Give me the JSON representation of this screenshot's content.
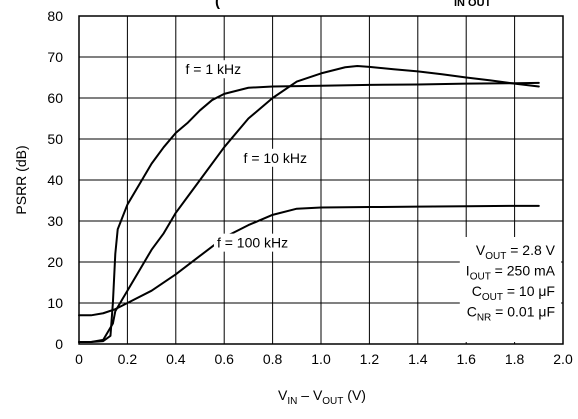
{
  "chart_data": {
    "type": "line",
    "title": "(",
    "title_right": "IN OUT",
    "ylabel": "PSRR (dB)",
    "xlabel": {
      "main1": "V",
      "sub1": "IN",
      "mid": " – V",
      "sub2": "OUT",
      "tail": " (V)"
    },
    "xlim": [
      0,
      2.0
    ],
    "ylim": [
      0,
      80
    ],
    "xticks": [
      "0",
      "0.2",
      "0.4",
      "0.6",
      "0.8",
      "1.0",
      "1.2",
      "1.4",
      "1.6",
      "1.8",
      "2.0"
    ],
    "yticks": [
      "0",
      "10",
      "20",
      "30",
      "40",
      "50",
      "60",
      "70",
      "80"
    ],
    "grid": true,
    "series": [
      {
        "name": "f = 1 kHz",
        "x": [
          0.0,
          0.05,
          0.1,
          0.13,
          0.14,
          0.15,
          0.16,
          0.2,
          0.25,
          0.3,
          0.35,
          0.4,
          0.45,
          0.5,
          0.55,
          0.6,
          0.7,
          0.8,
          1.0,
          1.2,
          1.4,
          1.6,
          1.8,
          1.9
        ],
        "y": [
          0.5,
          0.5,
          0.7,
          2,
          10,
          22,
          28,
          34,
          39,
          44,
          48,
          51.5,
          54,
          57,
          59.5,
          61,
          62.5,
          62.8,
          63,
          63.2,
          63.3,
          63.5,
          63.6,
          63.7
        ]
      },
      {
        "name": "f = 10 kHz",
        "x": [
          0.0,
          0.05,
          0.1,
          0.14,
          0.15,
          0.18,
          0.2,
          0.25,
          0.3,
          0.35,
          0.4,
          0.45,
          0.5,
          0.6,
          0.7,
          0.8,
          0.9,
          1.0,
          1.1,
          1.15,
          1.2,
          1.3,
          1.4,
          1.5,
          1.6,
          1.7,
          1.8,
          1.9
        ],
        "y": [
          0.5,
          0.5,
          1,
          5,
          8,
          11,
          13,
          18,
          23,
          27,
          32,
          36,
          40,
          48,
          55,
          60,
          64,
          66,
          67.5,
          67.8,
          67.6,
          67,
          66.5,
          65.8,
          65,
          64.3,
          63.5,
          62.8
        ]
      },
      {
        "name": "f = 100 kHz",
        "x": [
          0.0,
          0.05,
          0.1,
          0.15,
          0.2,
          0.3,
          0.4,
          0.5,
          0.6,
          0.7,
          0.8,
          0.9,
          1.0,
          1.2,
          1.4,
          1.6,
          1.8,
          1.9
        ],
        "y": [
          7,
          7,
          7.5,
          8.5,
          10,
          13,
          17,
          21.5,
          26,
          29,
          31.5,
          33,
          33.3,
          33.4,
          33.5,
          33.6,
          33.7,
          33.7
        ]
      }
    ],
    "annotations": [
      {
        "main": "V",
        "sub": "OUT",
        "tail": " = 2.8 V"
      },
      {
        "main": "I",
        "sub": "OUT",
        "tail": " = 250 mA"
      },
      {
        "main": "C",
        "sub": "OUT",
        "tail": " = 10 μF"
      },
      {
        "main": "C",
        "sub": "NR",
        "tail": " = 0.01 μF"
      }
    ]
  }
}
